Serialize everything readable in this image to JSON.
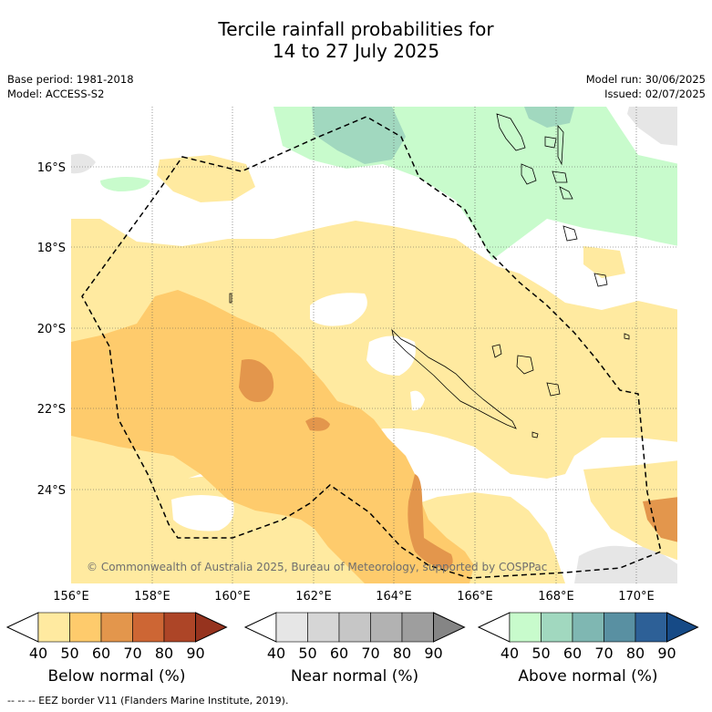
{
  "title": {
    "line1": "Tercile rainfall probabilities for",
    "line2": "14 to 27 July 2025"
  },
  "meta_left": {
    "base_period": "Base period: 1981-2018",
    "model": "Model: ACCESS-S2"
  },
  "meta_right": {
    "model_run": "Model run: 30/06/2025",
    "issued": "Issued: 02/07/2025"
  },
  "map": {
    "lat_labels": [
      "16°S",
      "18°S",
      "20°S",
      "22°S",
      "24°S"
    ],
    "lon_labels": [
      "156°E",
      "158°E",
      "160°E",
      "162°E",
      "164°E",
      "166°E",
      "168°E",
      "170°E"
    ],
    "copyright": "© Commonwealth of Australia 2025, Bureau of Meteorology, supported by COSPPac"
  },
  "colorbars": {
    "ticks": [
      "40",
      "50",
      "60",
      "70",
      "80",
      "90"
    ],
    "below": {
      "title": "Below normal (%)",
      "colors": [
        "#ffffff",
        "#ffeaa0",
        "#fecb6c",
        "#e3964c",
        "#cd6634",
        "#ad4527",
        "#96331e"
      ]
    },
    "near": {
      "title": "Near normal (%)",
      "colors": [
        "#ffffff",
        "#e6e6e6",
        "#d6d6d6",
        "#c6c6c6",
        "#b2b2b2",
        "#9e9e9e",
        "#858585"
      ]
    },
    "above": {
      "title": "Above normal (%)",
      "colors": [
        "#ffffff",
        "#c8fbcc",
        "#a1d8bf",
        "#7fb7b2",
        "#5990a2",
        "#2d6097",
        "#164a86"
      ]
    }
  },
  "footnote": "-- -- -- EEZ border V11 (Flanders Marine Institute, 2019)."
}
